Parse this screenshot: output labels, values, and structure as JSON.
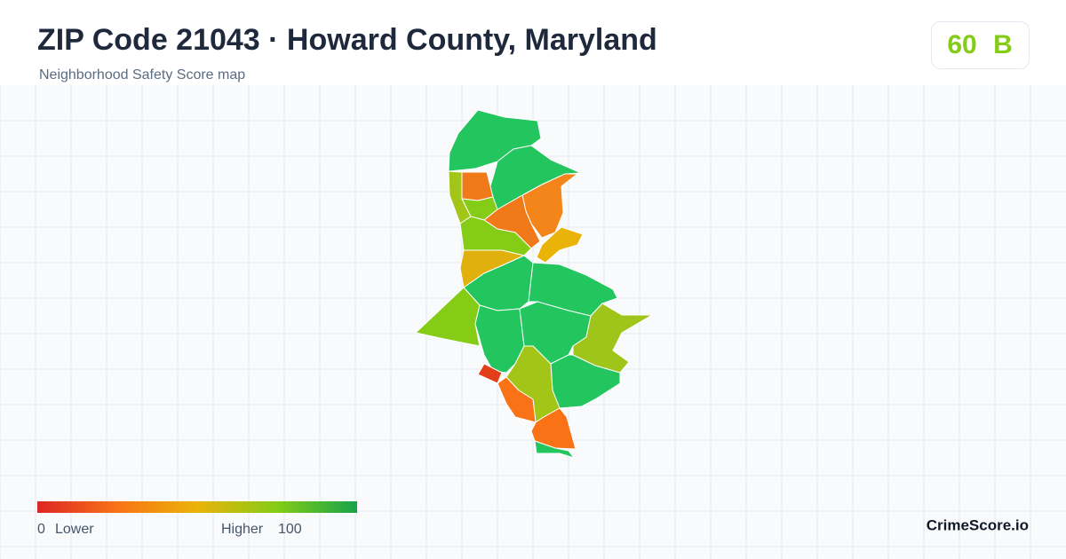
{
  "header": {
    "title": "ZIP Code 21043 · Howard County, Maryland",
    "subtitle": "Neighborhood Safety Score map"
  },
  "score": {
    "value": 60,
    "grade": "B"
  },
  "legend": {
    "min": 0,
    "min_label": "Lower",
    "max_label": "Higher",
    "max": 100
  },
  "brand": "CrimeScore.io"
}
